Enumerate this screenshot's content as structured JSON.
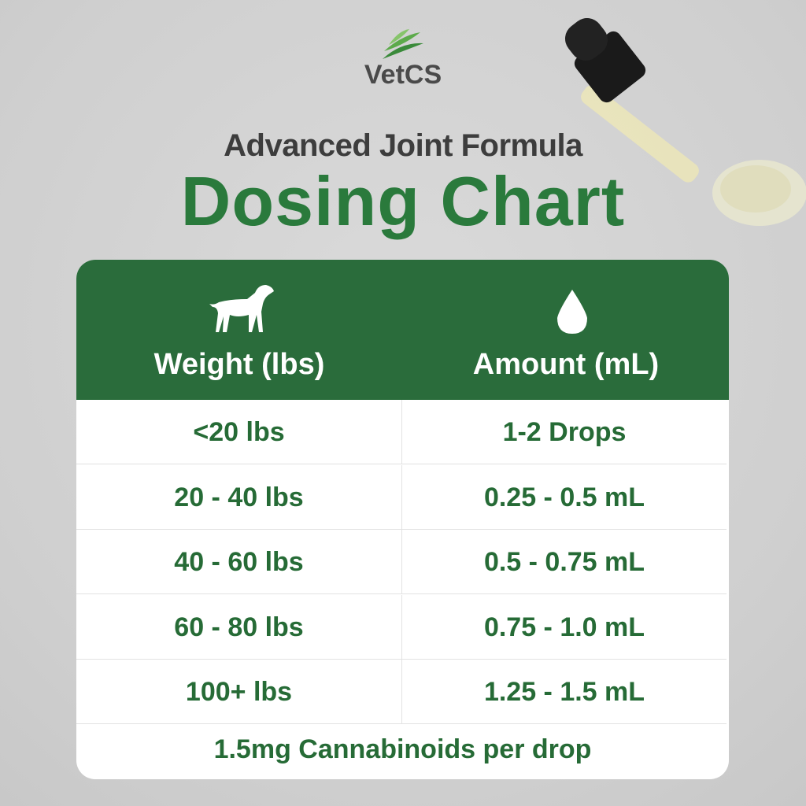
{
  "brand": "VetCS",
  "subtitle": "Advanced Joint Formula",
  "title": "Dosing Chart",
  "table": {
    "headers": [
      "Weight (lbs)",
      "Amount (mL)"
    ],
    "rows": [
      [
        "<20 lbs",
        "1-2 Drops"
      ],
      [
        "20 - 40 lbs",
        "0.25 - 0.5 mL"
      ],
      [
        "40 - 60 lbs",
        "0.5 - 0.75 mL"
      ],
      [
        "60 - 80 lbs",
        "0.75 - 1.0 mL"
      ],
      [
        "100+ lbs",
        "1.25 - 1.5 mL"
      ]
    ],
    "footer": "1.5mg Cannabinoids per drop"
  }
}
